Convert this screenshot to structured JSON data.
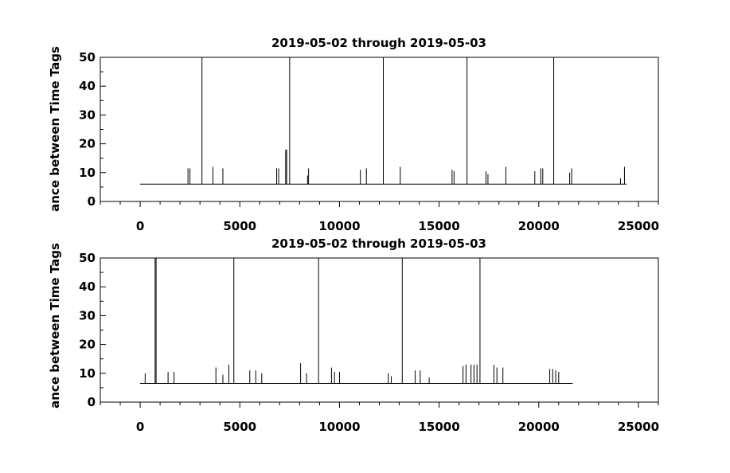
{
  "chart_data": [
    {
      "type": "line",
      "title": "2019-05-02 through 2019-05-03",
      "xlabel": "",
      "ylabel": "ance between Time Tags",
      "xlim": [
        -2000,
        26000
      ],
      "ylim": [
        0,
        50
      ],
      "xticks": [
        0,
        5000,
        10000,
        15000,
        20000,
        25000
      ],
      "xtick_labels": [
        "0",
        "5000",
        "10000",
        "15000",
        "20000",
        "25000"
      ],
      "yticks": [
        0,
        10,
        20,
        30,
        40,
        50
      ],
      "ytick_labels": [
        "0",
        "10",
        "20",
        "30",
        "40",
        "50"
      ],
      "grid": false,
      "baseline": 6,
      "x_range": [
        0,
        24400
      ],
      "spikes": [
        {
          "x": 2400,
          "y": 11.5
        },
        {
          "x": 2500,
          "y": 11.5
        },
        {
          "x": 3100,
          "y": 50
        },
        {
          "x": 3650,
          "y": 12
        },
        {
          "x": 4150,
          "y": 11.5
        },
        {
          "x": 6850,
          "y": 11.5
        },
        {
          "x": 6950,
          "y": 11.5
        },
        {
          "x": 7300,
          "y": 18
        },
        {
          "x": 7350,
          "y": 18
        },
        {
          "x": 7500,
          "y": 50
        },
        {
          "x": 8400,
          "y": 9
        },
        {
          "x": 8450,
          "y": 11.5
        },
        {
          "x": 11050,
          "y": 11
        },
        {
          "x": 11350,
          "y": 11.5
        },
        {
          "x": 12200,
          "y": 50
        },
        {
          "x": 13050,
          "y": 12
        },
        {
          "x": 15650,
          "y": 11
        },
        {
          "x": 15750,
          "y": 10.5
        },
        {
          "x": 16400,
          "y": 50
        },
        {
          "x": 17350,
          "y": 10.5
        },
        {
          "x": 17450,
          "y": 9.5
        },
        {
          "x": 18350,
          "y": 12
        },
        {
          "x": 19800,
          "y": 10.5
        },
        {
          "x": 20100,
          "y": 11.5
        },
        {
          "x": 20200,
          "y": 11.5
        },
        {
          "x": 20750,
          "y": 50
        },
        {
          "x": 21550,
          "y": 10
        },
        {
          "x": 21650,
          "y": 11.5
        },
        {
          "x": 24100,
          "y": 8
        },
        {
          "x": 24300,
          "y": 12
        }
      ]
    },
    {
      "type": "line",
      "title": "2019-05-02 through 2019-05-03",
      "xlabel": "",
      "ylabel": "ance between Time Tags",
      "xlim": [
        -2000,
        26000
      ],
      "ylim": [
        0,
        50
      ],
      "xticks": [
        0,
        5000,
        10000,
        15000,
        20000,
        25000
      ],
      "xtick_labels": [
        "0",
        "5000",
        "10000",
        "15000",
        "20000",
        "25000"
      ],
      "yticks": [
        0,
        10,
        20,
        30,
        40,
        50
      ],
      "ytick_labels": [
        "0",
        "10",
        "20",
        "30",
        "40",
        "50"
      ],
      "grid": false,
      "baseline": 6.5,
      "x_range": [
        0,
        21700
      ],
      "spikes": [
        {
          "x": 250,
          "y": 10
        },
        {
          "x": 750,
          "y": 50
        },
        {
          "x": 800,
          "y": 50
        },
        {
          "x": 1400,
          "y": 10.5
        },
        {
          "x": 1700,
          "y": 10.5
        },
        {
          "x": 3800,
          "y": 12
        },
        {
          "x": 4150,
          "y": 9.5
        },
        {
          "x": 4450,
          "y": 13
        },
        {
          "x": 4700,
          "y": 50
        },
        {
          "x": 5500,
          "y": 11
        },
        {
          "x": 5800,
          "y": 11
        },
        {
          "x": 6100,
          "y": 10
        },
        {
          "x": 8050,
          "y": 13.5
        },
        {
          "x": 8350,
          "y": 10
        },
        {
          "x": 8950,
          "y": 50
        },
        {
          "x": 9600,
          "y": 12
        },
        {
          "x": 9750,
          "y": 10.5
        },
        {
          "x": 10000,
          "y": 10.5
        },
        {
          "x": 12450,
          "y": 10
        },
        {
          "x": 12600,
          "y": 9
        },
        {
          "x": 13150,
          "y": 50
        },
        {
          "x": 13800,
          "y": 11
        },
        {
          "x": 14050,
          "y": 11
        },
        {
          "x": 14500,
          "y": 8.5
        },
        {
          "x": 16200,
          "y": 12.5
        },
        {
          "x": 16350,
          "y": 13
        },
        {
          "x": 16600,
          "y": 13
        },
        {
          "x": 16750,
          "y": 13
        },
        {
          "x": 16900,
          "y": 13
        },
        {
          "x": 17050,
          "y": 50
        },
        {
          "x": 17750,
          "y": 13
        },
        {
          "x": 17900,
          "y": 12
        },
        {
          "x": 18200,
          "y": 12
        },
        {
          "x": 20550,
          "y": 11.5
        },
        {
          "x": 20700,
          "y": 11.5
        },
        {
          "x": 20850,
          "y": 11
        },
        {
          "x": 21000,
          "y": 10.5
        }
      ]
    }
  ]
}
